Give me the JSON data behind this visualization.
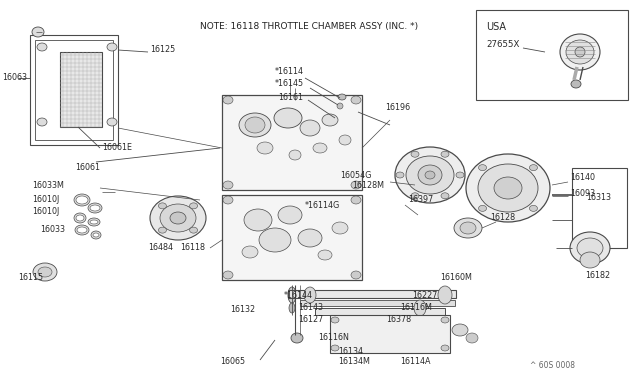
{
  "bg_color": "#ffffff",
  "line_color": "#4a4a4a",
  "text_color": "#2a2a2a",
  "title": "NOTE: 16118 THROTTLE CHAMBER ASSY (INC. *)",
  "note_fontsize": 6.5,
  "label_fontsize": 5.8,
  "fig_width": 6.4,
  "fig_height": 3.72,
  "watermark": "^ 60S 0008",
  "usa_label": "USA",
  "usa_part": "27655X"
}
